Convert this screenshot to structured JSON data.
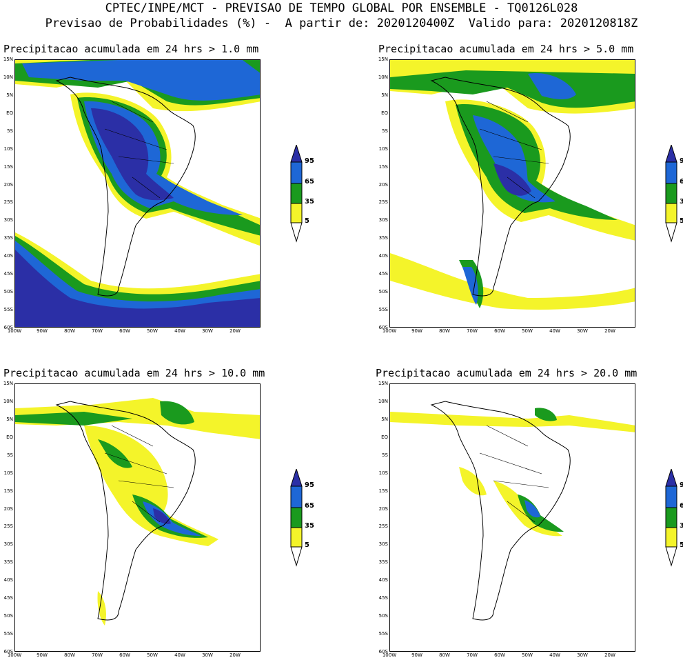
{
  "header": {
    "line1": "CPTEC/INPE/MCT - PREVISAO DE TEMPO GLOBAL POR ENSEMBLE - TQ0126L028",
    "line2": "Previsao de Probabilidades (%) -  A partir de: 2020120400Z  Valido para: 2020120818Z"
  },
  "lat_labels": [
    "15N",
    "10N",
    "5N",
    "EQ",
    "5S",
    "10S",
    "15S",
    "20S",
    "25S",
    "30S",
    "35S",
    "40S",
    "45S",
    "50S",
    "55S",
    "60S"
  ],
  "lon_labels": [
    "100W",
    "90W",
    "80W",
    "70W",
    "60W",
    "50W",
    "40W",
    "30W",
    "20W"
  ],
  "legend": {
    "labels": [
      "95",
      "65",
      "35",
      "5"
    ],
    "colors": {
      "level95": "#2b2fa6",
      "level65": "#1e67d6",
      "level35": "#1a9a1e",
      "level5": "#f4f42a",
      "empty": "#ffffff"
    }
  },
  "panels": [
    {
      "title": "Precipitacao acumulada em 24 hrs > 1.0 mm"
    },
    {
      "title": "Precipitacao acumulada em 24 hrs > 5.0 mm"
    },
    {
      "title": "Precipitacao acumulada em 24 hrs > 10.0 mm"
    },
    {
      "title": "Precipitacao acumulada em 24 hrs > 20.0 mm"
    }
  ]
}
